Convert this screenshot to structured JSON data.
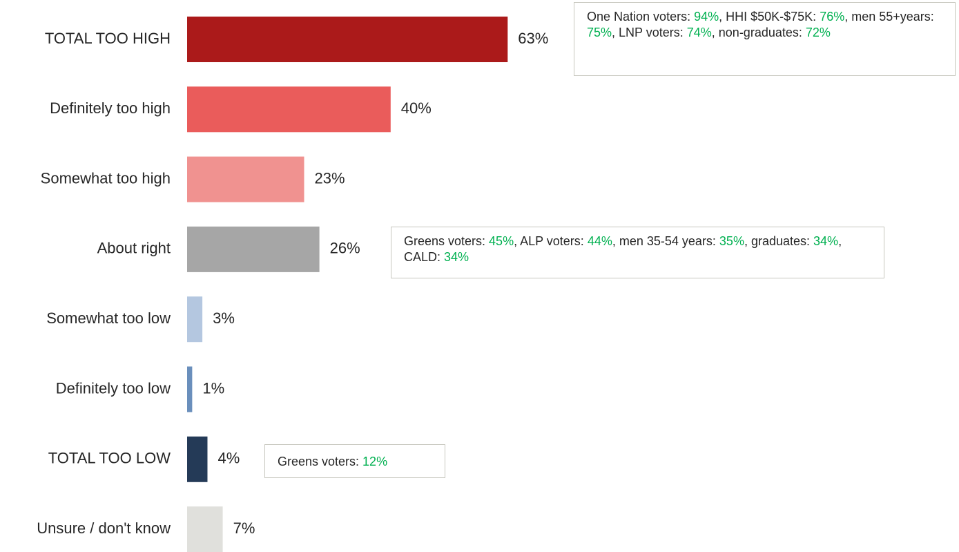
{
  "chart_data": {
    "type": "hbar",
    "categories": [
      "TOTAL TOO HIGH",
      "Definitely too high",
      "Somewhat too high",
      "About right",
      "Somewhat too low",
      "Definitely too low",
      "TOTAL TOO LOW",
      "Unsure / don't know"
    ],
    "values": [
      63,
      40,
      23,
      26,
      3,
      1,
      4,
      7
    ],
    "value_labels": [
      "63%",
      "40%",
      "23%",
      "26%",
      "3%",
      "1%",
      "4%",
      "7%"
    ],
    "colors": [
      "#ab1a1a",
      "#ea5c5b",
      "#f09290",
      "#a6a6a6",
      "#b4c7e0",
      "#6a8fbc",
      "#243a57",
      "#e0e0dc"
    ],
    "annotations": [
      {
        "segments": [
          {
            "text": "One Nation voters: "
          },
          {
            "text": "94%",
            "color": "#00b050"
          },
          {
            "text": ", HHI $50K-$75K: "
          },
          {
            "text": "76%",
            "color": "#00b050"
          },
          {
            "text": ", men 55+years: "
          },
          {
            "text": "75%",
            "color": "#00b050"
          },
          {
            "text": ", LNP voters: "
          },
          {
            "text": "74%",
            "color": "#00b050"
          },
          {
            "text": ", non-graduates: "
          },
          {
            "text": "72%",
            "color": "#00b050"
          }
        ]
      },
      {
        "segments": [
          {
            "text": "Greens voters: "
          },
          {
            "text": "45%",
            "color": "#00b050"
          },
          {
            "text": ", ALP voters: "
          },
          {
            "text": "44%",
            "color": "#00b050"
          },
          {
            "text": ", men 35-54 years: "
          },
          {
            "text": "35%",
            "color": "#00b050"
          },
          {
            "text": ", graduates: "
          },
          {
            "text": "34%",
            "color": "#00b050"
          },
          {
            "text": ", CALD: "
          },
          {
            "text": "34%",
            "color": "#00b050"
          }
        ]
      },
      {
        "segments": [
          {
            "text": "Greens voters: "
          },
          {
            "text": "12%",
            "color": "#00b050"
          }
        ]
      }
    ]
  }
}
